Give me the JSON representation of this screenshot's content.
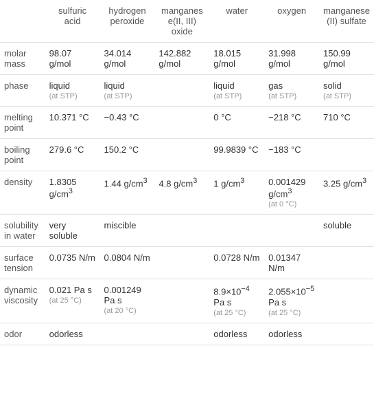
{
  "columns": [
    "",
    "sulfuric acid",
    "hydrogen peroxide",
    "manganese(II, III) oxide",
    "water",
    "oxygen",
    "manganese(II) sulfate"
  ],
  "rows": [
    {
      "label": "molar mass",
      "cells": [
        {
          "value": "98.07 g/mol"
        },
        {
          "value": "34.014 g/mol"
        },
        {
          "value": "142.882 g/mol"
        },
        {
          "value": "18.015 g/mol"
        },
        {
          "value": "31.998 g/mol"
        },
        {
          "value": "150.99 g/mol"
        }
      ]
    },
    {
      "label": "phase",
      "cells": [
        {
          "value": "liquid",
          "sub": "(at STP)"
        },
        {
          "value": "liquid",
          "sub": "(at STP)"
        },
        {
          "value": ""
        },
        {
          "value": "liquid",
          "sub": "(at STP)"
        },
        {
          "value": "gas",
          "sub": "(at STP)"
        },
        {
          "value": "solid",
          "sub": "(at STP)"
        }
      ]
    },
    {
      "label": "melting point",
      "cells": [
        {
          "value": "10.371 °C"
        },
        {
          "value": "−0.43 °C"
        },
        {
          "value": ""
        },
        {
          "value": "0 °C"
        },
        {
          "value": "−218 °C"
        },
        {
          "value": "710 °C"
        }
      ]
    },
    {
      "label": "boiling point",
      "cells": [
        {
          "value": "279.6 °C"
        },
        {
          "value": "150.2 °C"
        },
        {
          "value": ""
        },
        {
          "value": "99.9839 °C"
        },
        {
          "value": "−183 °C"
        },
        {
          "value": ""
        }
      ]
    },
    {
      "label": "density",
      "cells": [
        {
          "html": "1.8305 g/cm<sup>3</sup>"
        },
        {
          "html": "1.44 g/cm<sup>3</sup>"
        },
        {
          "html": "4.8 g/cm<sup>3</sup>"
        },
        {
          "html": "1 g/cm<sup>3</sup>"
        },
        {
          "html": "0.001429 g/cm<sup>3</sup>",
          "sub": "(at 0 °C)"
        },
        {
          "html": "3.25 g/cm<sup>3</sup>"
        }
      ]
    },
    {
      "label": "solubility in water",
      "cells": [
        {
          "value": "very soluble"
        },
        {
          "value": "miscible"
        },
        {
          "value": ""
        },
        {
          "value": ""
        },
        {
          "value": ""
        },
        {
          "value": "soluble"
        }
      ]
    },
    {
      "label": "surface tension",
      "cells": [
        {
          "value": "0.0735 N/m"
        },
        {
          "value": "0.0804 N/m"
        },
        {
          "value": ""
        },
        {
          "value": "0.0728 N/m"
        },
        {
          "value": "0.01347 N/m"
        },
        {
          "value": ""
        }
      ]
    },
    {
      "label": "dynamic viscosity",
      "cells": [
        {
          "value": "0.021 Pa s",
          "sub": "(at 25 °C)"
        },
        {
          "value": "0.001249 Pa s",
          "sub": "(at 20 °C)"
        },
        {
          "value": ""
        },
        {
          "html": "8.9×10<sup>−4</sup> Pa s",
          "sub": "(at 25 °C)"
        },
        {
          "html": "2.055×10<sup>−5</sup> Pa s",
          "sub": "(at 25 °C)"
        },
        {
          "value": ""
        }
      ]
    },
    {
      "label": "odor",
      "cells": [
        {
          "value": "odorless"
        },
        {
          "value": ""
        },
        {
          "value": ""
        },
        {
          "value": "odorless"
        },
        {
          "value": "odorless"
        },
        {
          "value": ""
        }
      ]
    }
  ]
}
